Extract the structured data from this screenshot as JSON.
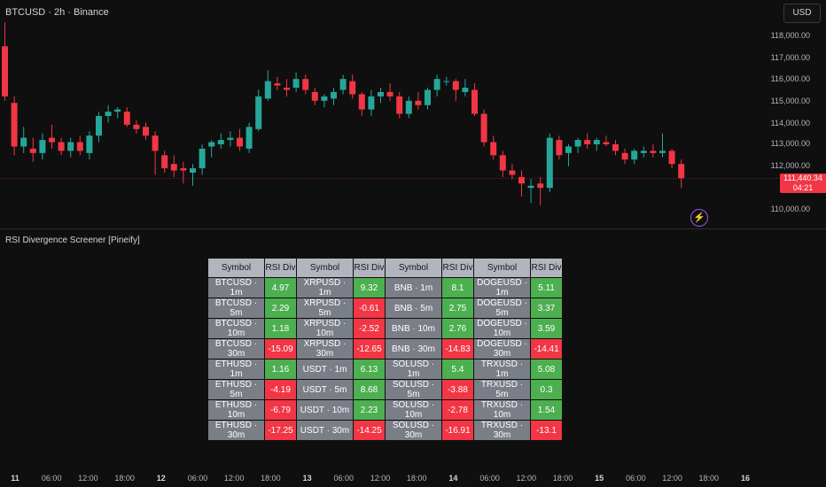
{
  "header": {
    "title": "BTCUSD · 2h · Binance",
    "currency_label": "USD"
  },
  "price_axis": {
    "ticks": [
      "118,000.00",
      "117,000.00",
      "116,000.00",
      "115,000.00",
      "114,000.00",
      "113,000.00",
      "112,000.00",
      "110,000.00"
    ],
    "current_price": "111,440.34",
    "countdown": "04:21"
  },
  "indicator": {
    "title": "RSI Divergence Screener [Pineify]"
  },
  "table": {
    "headers": [
      "Symbol",
      "RSI Div",
      "Symbol",
      "RSI Div",
      "Symbol",
      "RSI Div",
      "Symbol",
      "RSI Div"
    ],
    "rows": [
      [
        [
          "BTCUSD · 1m",
          "4.97"
        ],
        [
          "XRPUSD · 1m",
          "9.32"
        ],
        [
          "BNB · 1m",
          "8.1"
        ],
        [
          "DOGEUSD · 1m",
          "5.11"
        ]
      ],
      [
        [
          "BTCUSD · 5m",
          "2.29"
        ],
        [
          "XRPUSD · 5m",
          "-0.61"
        ],
        [
          "BNB · 5m",
          "2.75"
        ],
        [
          "DOGEUSD · 5m",
          "3.37"
        ]
      ],
      [
        [
          "BTCUSD · 10m",
          "1.18"
        ],
        [
          "XRPUSD · 10m",
          "-2.52"
        ],
        [
          "BNB · 10m",
          "2.76"
        ],
        [
          "DOGEUSD · 10m",
          "3.59"
        ]
      ],
      [
        [
          "BTCUSD · 30m",
          "-15.09"
        ],
        [
          "XRPUSD · 30m",
          "-12.65"
        ],
        [
          "BNB · 30m",
          "-14.83"
        ],
        [
          "DOGEUSD · 30m",
          "-14.41"
        ]
      ],
      [
        [
          "ETHUSD · 1m",
          "1.16"
        ],
        [
          "USDT · 1m",
          "6.13"
        ],
        [
          "SOLUSD · 1m",
          "5.4"
        ],
        [
          "TRXUSD · 1m",
          "5.08"
        ]
      ],
      [
        [
          "ETHUSD · 5m",
          "-4.19"
        ],
        [
          "USDT · 5m",
          "8.68"
        ],
        [
          "SOLUSD · 5m",
          "-3.88"
        ],
        [
          "TRXUSD · 5m",
          "0.3"
        ]
      ],
      [
        [
          "ETHUSD · 10m",
          "-6.79"
        ],
        [
          "USDT · 10m",
          "2.23"
        ],
        [
          "SOLUSD · 10m",
          "-2.78"
        ],
        [
          "TRXUSD · 10m",
          "1.54"
        ]
      ],
      [
        [
          "ETHUSD · 30m",
          "-17.25"
        ],
        [
          "USDT · 30m",
          "-14.25"
        ],
        [
          "SOLUSD · 30m",
          "-16.91"
        ],
        [
          "TRXUSD · 30m",
          "-13.1"
        ]
      ]
    ]
  },
  "time_axis": [
    "11",
    "06:00",
    "12:00",
    "18:00",
    "12",
    "06:00",
    "12:00",
    "18:00",
    "13",
    "06:00",
    "12:00",
    "18:00",
    "14",
    "06:00",
    "12:00",
    "18:00",
    "15",
    "06:00",
    "12:00",
    "18:00",
    "16"
  ],
  "colors": {
    "up": "#26a69a",
    "down": "#f23645",
    "background": "#0f0f0f",
    "positive_cell": "#4caf50",
    "negative_cell": "#f23645"
  },
  "candles": [
    {
      "o": 117500,
      "h": 118600,
      "l": 115000,
      "c": 115200
    },
    {
      "o": 114900,
      "h": 115200,
      "l": 112500,
      "c": 112900
    },
    {
      "o": 112900,
      "h": 113800,
      "l": 112600,
      "c": 113300
    },
    {
      "o": 112800,
      "h": 113300,
      "l": 112200,
      "c": 112600
    },
    {
      "o": 112600,
      "h": 113500,
      "l": 112300,
      "c": 113200
    },
    {
      "o": 113300,
      "h": 113900,
      "l": 112800,
      "c": 113100
    },
    {
      "o": 113100,
      "h": 113300,
      "l": 112500,
      "c": 112700
    },
    {
      "o": 112700,
      "h": 113300,
      "l": 112400,
      "c": 113100
    },
    {
      "o": 113100,
      "h": 113400,
      "l": 112500,
      "c": 112700
    },
    {
      "o": 112600,
      "h": 113600,
      "l": 112300,
      "c": 113400
    },
    {
      "o": 113400,
      "h": 114500,
      "l": 113100,
      "c": 114300
    },
    {
      "o": 114300,
      "h": 114800,
      "l": 114000,
      "c": 114500
    },
    {
      "o": 114500,
      "h": 114700,
      "l": 114200,
      "c": 114600
    },
    {
      "o": 114500,
      "h": 114700,
      "l": 113800,
      "c": 113900
    },
    {
      "o": 113900,
      "h": 114100,
      "l": 113500,
      "c": 113700
    },
    {
      "o": 113800,
      "h": 114000,
      "l": 113200,
      "c": 113400
    },
    {
      "o": 113400,
      "h": 113600,
      "l": 111600,
      "c": 112700
    },
    {
      "o": 112500,
      "h": 112700,
      "l": 111700,
      "c": 111900
    },
    {
      "o": 112100,
      "h": 112500,
      "l": 111500,
      "c": 111800
    },
    {
      "o": 111900,
      "h": 112200,
      "l": 111200,
      "c": 111800
    },
    {
      "o": 111700,
      "h": 112100,
      "l": 111100,
      "c": 111900
    },
    {
      "o": 111900,
      "h": 113000,
      "l": 111600,
      "c": 112800
    },
    {
      "o": 112900,
      "h": 113200,
      "l": 112400,
      "c": 113100
    },
    {
      "o": 113000,
      "h": 113500,
      "l": 112800,
      "c": 113200
    },
    {
      "o": 113200,
      "h": 113600,
      "l": 112900,
      "c": 113300
    },
    {
      "o": 113300,
      "h": 113700,
      "l": 112700,
      "c": 112900
    },
    {
      "o": 112800,
      "h": 114000,
      "l": 112600,
      "c": 113800
    },
    {
      "o": 113700,
      "h": 115500,
      "l": 113600,
      "c": 115200
    },
    {
      "o": 115100,
      "h": 116400,
      "l": 115000,
      "c": 115900
    },
    {
      "o": 115800,
      "h": 116100,
      "l": 115500,
      "c": 115700
    },
    {
      "o": 115600,
      "h": 116000,
      "l": 115200,
      "c": 115500
    },
    {
      "o": 115600,
      "h": 116300,
      "l": 115400,
      "c": 116000
    },
    {
      "o": 116000,
      "h": 116200,
      "l": 115300,
      "c": 115500
    },
    {
      "o": 115400,
      "h": 115600,
      "l": 114800,
      "c": 115000
    },
    {
      "o": 115000,
      "h": 115300,
      "l": 114700,
      "c": 115200
    },
    {
      "o": 115100,
      "h": 115600,
      "l": 114800,
      "c": 115400
    },
    {
      "o": 115500,
      "h": 116200,
      "l": 115300,
      "c": 116000
    },
    {
      "o": 115900,
      "h": 116200,
      "l": 115100,
      "c": 115300
    },
    {
      "o": 115300,
      "h": 115400,
      "l": 114300,
      "c": 114600
    },
    {
      "o": 114600,
      "h": 115500,
      "l": 114300,
      "c": 115200
    },
    {
      "o": 115200,
      "h": 115600,
      "l": 114900,
      "c": 115400
    },
    {
      "o": 115400,
      "h": 115800,
      "l": 115000,
      "c": 115200
    },
    {
      "o": 115200,
      "h": 115400,
      "l": 114200,
      "c": 114400
    },
    {
      "o": 114400,
      "h": 115200,
      "l": 114200,
      "c": 115000
    },
    {
      "o": 115000,
      "h": 115400,
      "l": 114600,
      "c": 114800
    },
    {
      "o": 114800,
      "h": 115600,
      "l": 114600,
      "c": 115500
    },
    {
      "o": 115500,
      "h": 116200,
      "l": 115200,
      "c": 116000
    },
    {
      "o": 115900,
      "h": 116100,
      "l": 115700,
      "c": 115900
    },
    {
      "o": 115900,
      "h": 116000,
      "l": 115000,
      "c": 115500
    },
    {
      "o": 115400,
      "h": 116000,
      "l": 115200,
      "c": 115600
    },
    {
      "o": 115500,
      "h": 115800,
      "l": 114300,
      "c": 114400
    },
    {
      "o": 114400,
      "h": 114600,
      "l": 112900,
      "c": 113100
    },
    {
      "o": 113100,
      "h": 113400,
      "l": 112300,
      "c": 112500
    },
    {
      "o": 112500,
      "h": 112700,
      "l": 111500,
      "c": 111800
    },
    {
      "o": 111800,
      "h": 112100,
      "l": 111400,
      "c": 111600
    },
    {
      "o": 111500,
      "h": 111800,
      "l": 110600,
      "c": 111200
    },
    {
      "o": 111000,
      "h": 111400,
      "l": 110300,
      "c": 111100
    },
    {
      "o": 111200,
      "h": 111500,
      "l": 110200,
      "c": 111000
    },
    {
      "o": 111000,
      "h": 113500,
      "l": 110800,
      "c": 113300
    },
    {
      "o": 113200,
      "h": 113400,
      "l": 112300,
      "c": 112500
    },
    {
      "o": 112600,
      "h": 113000,
      "l": 112000,
      "c": 112900
    },
    {
      "o": 112900,
      "h": 113300,
      "l": 112600,
      "c": 113200
    },
    {
      "o": 113200,
      "h": 113500,
      "l": 112800,
      "c": 113000
    },
    {
      "o": 113000,
      "h": 113300,
      "l": 112700,
      "c": 113200
    },
    {
      "o": 113100,
      "h": 113400,
      "l": 112900,
      "c": 113000
    },
    {
      "o": 113000,
      "h": 113200,
      "l": 112500,
      "c": 112700
    },
    {
      "o": 112600,
      "h": 112800,
      "l": 112100,
      "c": 112300
    },
    {
      "o": 112300,
      "h": 112800,
      "l": 112100,
      "c": 112700
    },
    {
      "o": 112600,
      "h": 112900,
      "l": 112400,
      "c": 112700
    },
    {
      "o": 112700,
      "h": 113000,
      "l": 112400,
      "c": 112600
    },
    {
      "o": 112600,
      "h": 113500,
      "l": 112400,
      "c": 112700
    },
    {
      "o": 112700,
      "h": 112800,
      "l": 111900,
      "c": 112100
    },
    {
      "o": 112100,
      "h": 112300,
      "l": 111000,
      "c": 111440
    }
  ]
}
